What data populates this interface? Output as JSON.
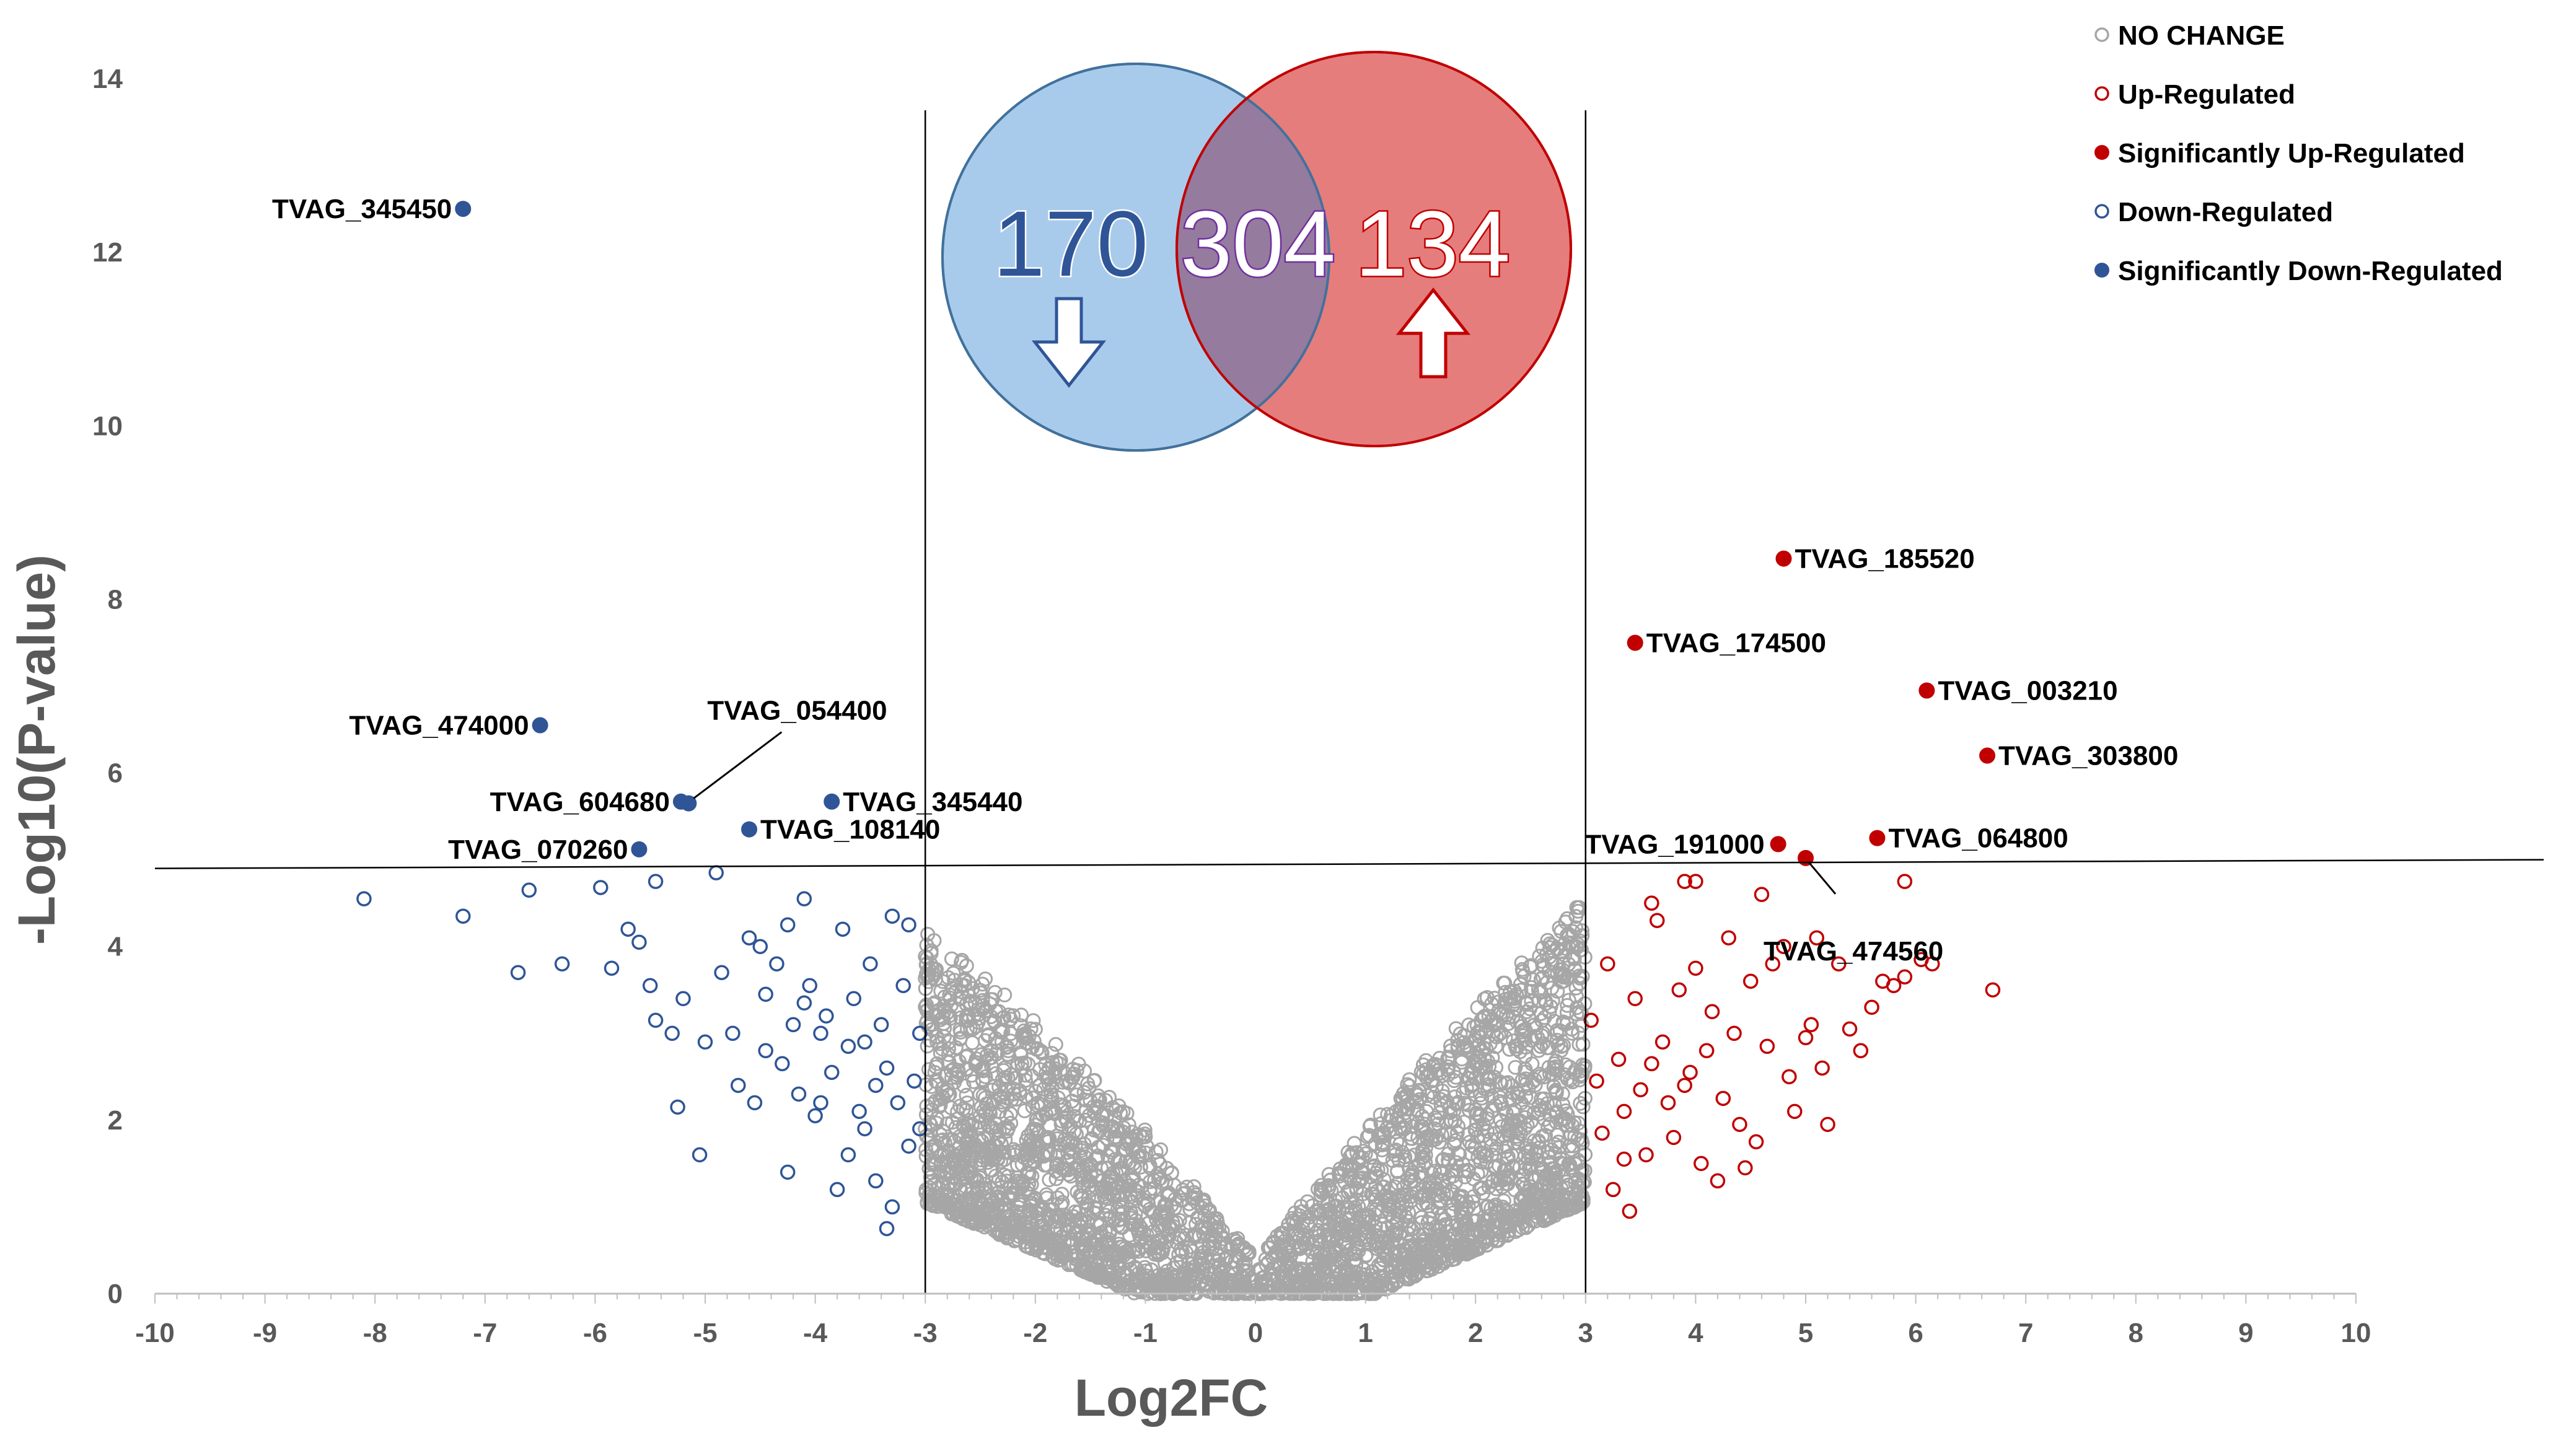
{
  "chart_data": {
    "type": "scatter",
    "title": "",
    "xlabel": "Log2FC",
    "ylabel": "-Log10(P-value)",
    "xlim": [
      -10,
      10
    ],
    "ylim": [
      0,
      14
    ],
    "xticks": [
      -10,
      -9,
      -8,
      -7,
      -6,
      -5,
      -4,
      -3,
      -2,
      -1,
      0,
      1,
      2,
      3,
      4,
      5,
      6,
      7,
      8,
      9,
      10
    ],
    "yticks": [
      0,
      2,
      4,
      6,
      8,
      10,
      12,
      14
    ],
    "grid": false,
    "legend_position": "top-right",
    "thresholds": {
      "log2fc": [
        -3,
        3
      ],
      "pvalue_line": [
        [
          -10,
          4.9
        ],
        [
          10,
          5.0
        ]
      ]
    },
    "colors": {
      "no_change": "#A6A6A6",
      "up": "#C00000",
      "down": "#2F5597"
    },
    "legend": [
      {
        "label": "NO CHANGE",
        "color": "#A6A6A6",
        "filled": false
      },
      {
        "label": "Up-Regulated",
        "color": "#C00000",
        "filled": false
      },
      {
        "label": "Significantly Up-Regulated",
        "color": "#C00000",
        "filled": true
      },
      {
        "label": "Down-Regulated",
        "color": "#2F5597",
        "filled": false
      },
      {
        "label": "Significantly Down-Regulated",
        "color": "#2F5597",
        "filled": true
      }
    ],
    "series": [
      {
        "name": "Significantly Down-Regulated",
        "points": [
          {
            "x": -7.2,
            "y": 12.5,
            "label": "TVAG_345450"
          },
          {
            "x": -6.5,
            "y": 6.55,
            "label": "TVAG_474000"
          },
          {
            "x": -5.15,
            "y": 5.65,
            "label": "TVAG_054400"
          },
          {
            "x": -5.22,
            "y": 5.67,
            "label": "TVAG_604680"
          },
          {
            "x": -3.85,
            "y": 5.67,
            "label": "TVAG_345440"
          },
          {
            "x": -4.6,
            "y": 5.35,
            "label": "TVAG_108140"
          },
          {
            "x": -5.6,
            "y": 5.12,
            "label": "TVAG_070260"
          }
        ]
      },
      {
        "name": "Significantly Up-Regulated",
        "points": [
          {
            "x": 4.8,
            "y": 8.47,
            "label": "TVAG_185520"
          },
          {
            "x": 3.45,
            "y": 7.5,
            "label": "TVAG_174500"
          },
          {
            "x": 6.1,
            "y": 6.95,
            "label": "TVAG_003210"
          },
          {
            "x": 6.65,
            "y": 6.2,
            "label": "TVAG_303800"
          },
          {
            "x": 4.75,
            "y": 5.18,
            "label": "TVAG_191000"
          },
          {
            "x": 5.65,
            "y": 5.25,
            "label": "TVAG_064800"
          },
          {
            "x": 5.0,
            "y": 5.02,
            "label": "TVAG_474560"
          }
        ]
      },
      {
        "name": "Down-Regulated",
        "points": [
          {
            "x": -8.1,
            "y": 4.55
          },
          {
            "x": -7.2,
            "y": 4.35
          },
          {
            "x": -6.6,
            "y": 4.65
          },
          {
            "x": -6.3,
            "y": 3.8
          },
          {
            "x": -5.95,
            "y": 4.68
          },
          {
            "x": -5.7,
            "y": 4.2
          },
          {
            "x": -5.6,
            "y": 4.05
          },
          {
            "x": -5.45,
            "y": 4.75
          },
          {
            "x": -5.45,
            "y": 3.15
          },
          {
            "x": -5.3,
            "y": 3.0
          },
          {
            "x": -5.25,
            "y": 2.15
          },
          {
            "x": -5.2,
            "y": 3.4
          },
          {
            "x": -5.05,
            "y": 1.6
          },
          {
            "x": -4.9,
            "y": 4.85
          },
          {
            "x": -4.85,
            "y": 3.7
          },
          {
            "x": -4.75,
            "y": 3.0
          },
          {
            "x": -4.7,
            "y": 2.4
          },
          {
            "x": -4.6,
            "y": 4.1
          },
          {
            "x": -4.5,
            "y": 4.0
          },
          {
            "x": -4.45,
            "y": 3.45
          },
          {
            "x": -4.45,
            "y": 2.8
          },
          {
            "x": -4.35,
            "y": 3.8
          },
          {
            "x": -4.3,
            "y": 2.65
          },
          {
            "x": -4.25,
            "y": 1.4
          },
          {
            "x": -4.2,
            "y": 3.1
          },
          {
            "x": -4.15,
            "y": 2.3
          },
          {
            "x": -4.1,
            "y": 4.55
          },
          {
            "x": -4.05,
            "y": 3.55
          },
          {
            "x": -4.0,
            "y": 2.05
          },
          {
            "x": -3.95,
            "y": 3.0
          },
          {
            "x": -3.9,
            "y": 3.2
          },
          {
            "x": -3.85,
            "y": 2.55
          },
          {
            "x": -3.8,
            "y": 1.2
          },
          {
            "x": -3.75,
            "y": 4.2
          },
          {
            "x": -3.7,
            "y": 2.85
          },
          {
            "x": -3.65,
            "y": 3.4
          },
          {
            "x": -3.6,
            "y": 2.1
          },
          {
            "x": -3.55,
            "y": 1.9
          },
          {
            "x": -3.5,
            "y": 3.8
          },
          {
            "x": -3.45,
            "y": 2.4
          },
          {
            "x": -3.45,
            "y": 1.3
          },
          {
            "x": -3.4,
            "y": 3.1
          },
          {
            "x": -3.35,
            "y": 2.6
          },
          {
            "x": -3.3,
            "y": 1.0
          },
          {
            "x": -3.3,
            "y": 4.35
          },
          {
            "x": -3.25,
            "y": 2.2
          },
          {
            "x": -3.2,
            "y": 3.55
          },
          {
            "x": -3.15,
            "y": 1.7
          },
          {
            "x": -3.1,
            "y": 2.45
          },
          {
            "x": -3.05,
            "y": 1.9
          },
          {
            "x": -3.05,
            "y": 3.0
          },
          {
            "x": -4.55,
            "y": 2.2
          },
          {
            "x": -3.95,
            "y": 2.2
          },
          {
            "x": -4.25,
            "y": 4.25
          },
          {
            "x": -3.7,
            "y": 1.6
          },
          {
            "x": -3.35,
            "y": 0.75
          },
          {
            "x": -5.5,
            "y": 3.55
          },
          {
            "x": -5.85,
            "y": 3.75
          },
          {
            "x": -6.7,
            "y": 3.7
          },
          {
            "x": -5.0,
            "y": 2.9
          },
          {
            "x": -4.1,
            "y": 3.35
          },
          {
            "x": -3.55,
            "y": 2.9
          },
          {
            "x": -3.15,
            "y": 4.25
          }
        ]
      },
      {
        "name": "Up-Regulated",
        "points": [
          {
            "x": 3.05,
            "y": 3.15
          },
          {
            "x": 3.1,
            "y": 2.45
          },
          {
            "x": 3.15,
            "y": 1.85
          },
          {
            "x": 3.2,
            "y": 3.8
          },
          {
            "x": 3.25,
            "y": 1.2
          },
          {
            "x": 3.3,
            "y": 2.7
          },
          {
            "x": 3.35,
            "y": 2.1
          },
          {
            "x": 3.4,
            "y": 0.95
          },
          {
            "x": 3.45,
            "y": 3.4
          },
          {
            "x": 3.5,
            "y": 2.35
          },
          {
            "x": 3.55,
            "y": 1.6
          },
          {
            "x": 3.6,
            "y": 4.5
          },
          {
            "x": 3.65,
            "y": 4.3
          },
          {
            "x": 3.7,
            "y": 2.9
          },
          {
            "x": 3.75,
            "y": 2.2
          },
          {
            "x": 3.8,
            "y": 1.8
          },
          {
            "x": 3.85,
            "y": 3.5
          },
          {
            "x": 3.9,
            "y": 4.75
          },
          {
            "x": 3.95,
            "y": 2.55
          },
          {
            "x": 4.0,
            "y": 3.75
          },
          {
            "x": 4.05,
            "y": 1.5
          },
          {
            "x": 4.1,
            "y": 2.8
          },
          {
            "x": 4.15,
            "y": 3.25
          },
          {
            "x": 4.2,
            "y": 1.3
          },
          {
            "x": 4.25,
            "y": 2.25
          },
          {
            "x": 4.3,
            "y": 4.1
          },
          {
            "x": 4.35,
            "y": 3.0
          },
          {
            "x": 4.4,
            "y": 1.95
          },
          {
            "x": 4.5,
            "y": 3.6
          },
          {
            "x": 4.55,
            "y": 1.75
          },
          {
            "x": 4.6,
            "y": 4.6
          },
          {
            "x": 4.65,
            "y": 2.85
          },
          {
            "x": 4.7,
            "y": 3.8
          },
          {
            "x": 4.8,
            "y": 4.0
          },
          {
            "x": 4.85,
            "y": 2.5
          },
          {
            "x": 4.9,
            "y": 2.1
          },
          {
            "x": 5.0,
            "y": 2.95
          },
          {
            "x": 5.05,
            "y": 3.1
          },
          {
            "x": 5.1,
            "y": 4.1
          },
          {
            "x": 5.15,
            "y": 2.6
          },
          {
            "x": 5.2,
            "y": 1.95
          },
          {
            "x": 5.3,
            "y": 3.8
          },
          {
            "x": 5.4,
            "y": 3.05
          },
          {
            "x": 5.5,
            "y": 2.8
          },
          {
            "x": 5.6,
            "y": 3.3
          },
          {
            "x": 5.7,
            "y": 3.6
          },
          {
            "x": 5.8,
            "y": 3.55
          },
          {
            "x": 5.9,
            "y": 3.65
          },
          {
            "x": 5.9,
            "y": 4.75
          },
          {
            "x": 6.05,
            "y": 3.85
          },
          {
            "x": 6.15,
            "y": 3.8
          },
          {
            "x": 6.7,
            "y": 3.5
          },
          {
            "x": 3.9,
            "y": 2.4
          },
          {
            "x": 4.45,
            "y": 1.45
          },
          {
            "x": 3.35,
            "y": 1.55
          },
          {
            "x": 4.0,
            "y": 4.75
          },
          {
            "x": 3.6,
            "y": 2.65
          }
        ]
      }
    ],
    "no_change_density": {
      "description": "dense V-shaped cloud of several thousand grey open circles between Log2FC -3 and 3",
      "envelope": [
        [
          -3,
          4.0
        ],
        [
          -2,
          3.0
        ],
        [
          -1,
          1.8
        ],
        [
          0,
          0.4
        ],
        [
          1,
          1.8
        ],
        [
          2,
          3.2
        ],
        [
          3,
          4.4
        ]
      ]
    },
    "venn": {
      "down_count": "170",
      "overlap_count": "304",
      "up_count": "134",
      "down_color": "#A9CBEB",
      "up_color": "#E06666",
      "overlap_color": "#957B9E"
    }
  }
}
